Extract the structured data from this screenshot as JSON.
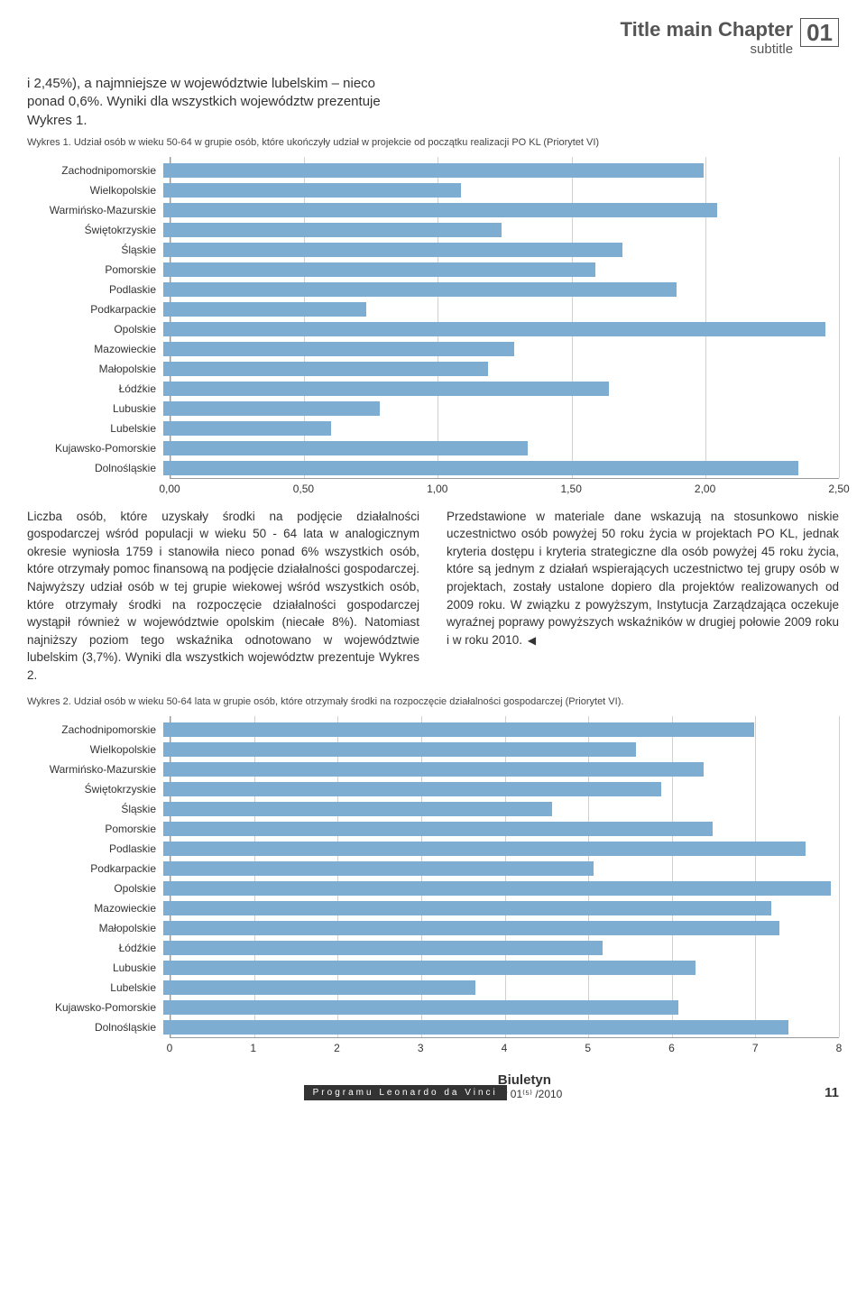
{
  "header": {
    "title_main": "Title main Chapter",
    "subtitle": "subtitle",
    "chapter_number": "01"
  },
  "intro": "i 2,45%), a najmniejsze w województwie lubelskim – nieco ponad 0,6%. Wyniki dla wszystkich województw prezentuje Wykres 1.",
  "chart1": {
    "caption": "Wykres 1. Udział osób w wieku 50-64 w grupie osób, które ukończyły udział w projekcie od początku realizacji PO KL (Priorytet VI)",
    "type": "bar-horizontal",
    "xlim": [
      0,
      2.5
    ],
    "xticks": [
      "0,00",
      "0,50",
      "1,00",
      "1,50",
      "2,00",
      "2,50"
    ],
    "bar_color": "#7daed1",
    "grid_color": "#d0d0d0",
    "label_fontsize": 12,
    "categories": [
      "Zachodnipomorskie",
      "Wielkopolskie",
      "Warmińsko-Mazurskie",
      "Świętokrzyskie",
      "Śląskie",
      "Pomorskie",
      "Podlaskie",
      "Podkarpackie",
      "Opolskie",
      "Mazowieckie",
      "Małopolskie",
      "Łódźkie",
      "Lubuskie",
      "Lubelskie",
      "Kujawsko-Pomorskie",
      "Dolnośląskie"
    ],
    "values": [
      2.0,
      1.1,
      2.05,
      1.25,
      1.7,
      1.6,
      1.9,
      0.75,
      2.45,
      1.3,
      1.2,
      1.65,
      0.8,
      0.62,
      1.35,
      2.35
    ]
  },
  "body_left": "Liczba osób, które uzyskały środki na podjęcie działalności gospodarczej wśród populacji w wieku 50 - 64 lata w analogicznym okresie wyniosła 1759 i stanowiła nieco ponad 6% wszystkich osób, które otrzymały pomoc finansową na podjęcie działalności gospodarczej. Najwyższy udział osób w tej grupie wiekowej wśród wszystkich osób, które otrzymały środki na rozpoczęcie działalności gospodarczej wystąpił również w województwie opolskim (niecałe 8%). Natomiast najniższy poziom tego wskaźnika odnotowano w województwie lubelskim (3,7%). Wyniki dla wszystkich województw prezentuje Wykres 2.",
  "body_right": "Przedstawione w materiale dane wskazują na stosunkowo niskie uczestnictwo osób powyżej 50 roku życia w projektach PO KL, jednak kryteria dostępu i kryteria strategiczne dla osób powyżej 45 roku życia, które są jednym z działań wspierających uczestnictwo tej grupy osób w projektach, zostały ustalone dopiero dla projektów realizowanych od 2009 roku. W związku z powyższym, Instytucja Zarządzająca oczekuje wyraźnej poprawy powyższych wskaźników w drugiej połowie 2009 roku i w roku 2010.",
  "chart2": {
    "caption": "Wykres 2. Udział osób w wieku 50-64 lata w grupie osób, które otrzymały środki na rozpoczęcie działalności gospodarczej (Priorytet VI).",
    "type": "bar-horizontal",
    "xlim": [
      0,
      8
    ],
    "xticks": [
      "0",
      "1",
      "2",
      "3",
      "4",
      "5",
      "6",
      "7",
      "8"
    ],
    "bar_color": "#7daed1",
    "grid_color": "#d0d0d0",
    "label_fontsize": 12,
    "categories": [
      "Zachodnipomorskie",
      "Wielkopolskie",
      "Warmińsko-Mazurskie",
      "Świętokrzyskie",
      "Śląskie",
      "Pomorskie",
      "Podlaskie",
      "Podkarpackie",
      "Opolskie",
      "Mazowieckie",
      "Małopolskie",
      "Łódźkie",
      "Lubuskie",
      "Lubelskie",
      "Kujawsko-Pomorskie",
      "Dolnośląskie"
    ],
    "values": [
      7.0,
      5.6,
      6.4,
      5.9,
      4.6,
      6.5,
      7.6,
      5.1,
      7.9,
      7.2,
      7.3,
      5.2,
      6.3,
      3.7,
      6.1,
      7.4
    ]
  },
  "footer": {
    "bar_text": "Programu Leonardo da Vinci",
    "title": "Biuletyn",
    "line": "nr 01⁽⁵⁾ /2010",
    "page": "11"
  }
}
